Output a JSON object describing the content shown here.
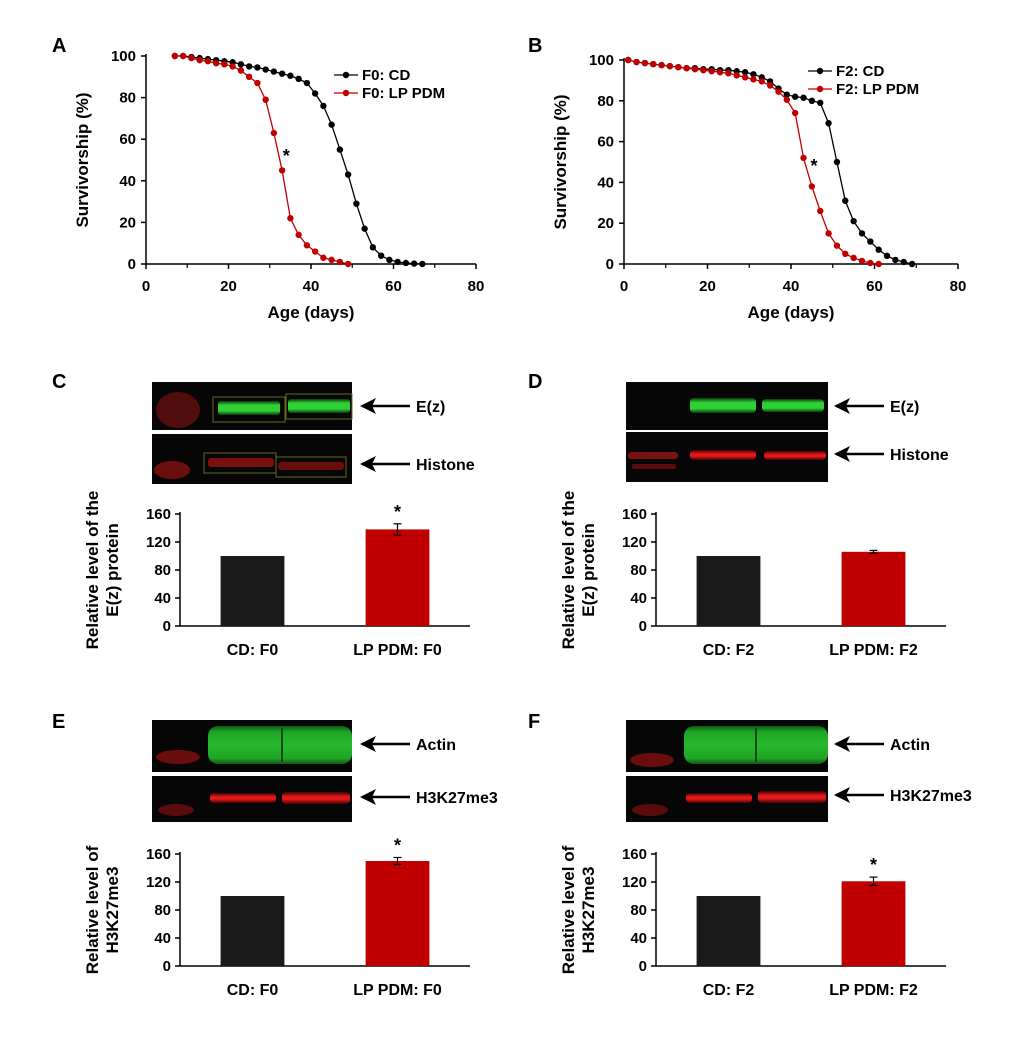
{
  "figure": {
    "panels": {
      "A": "A",
      "B": "B",
      "C": "C",
      "D": "D",
      "E": "E",
      "F": "F"
    },
    "blots": {
      "C": {
        "top_label": "E(z)",
        "bottom_label": "Histone"
      },
      "D": {
        "top_label": "E(z)",
        "bottom_label": "Histone"
      },
      "E": {
        "top_label": "Actin",
        "bottom_label": "H3K27me3"
      },
      "F": {
        "top_label": "Actin",
        "bottom_label": "H3K27me3"
      }
    },
    "colors": {
      "control": "#000000",
      "treatment": "#c00000",
      "blot_green": "#25c82a",
      "blot_red": "#d01010",
      "blot_bg": "#050505"
    }
  },
  "chart_data": [
    {
      "id": "A",
      "type": "line",
      "xlabel": "Age (days)",
      "ylabel": "Survivorship (%)",
      "xlim": [
        0,
        80
      ],
      "ylim": [
        0,
        100
      ],
      "xticks": [
        0,
        20,
        40,
        60,
        80
      ],
      "yticks": [
        0,
        20,
        40,
        60,
        80,
        100
      ],
      "legend_position": "top-right",
      "annotation": "*",
      "annotation_at": [
        34,
        52
      ],
      "series": [
        {
          "name": "F0: CD",
          "color": "#000000",
          "x": [
            7,
            9,
            11,
            13,
            15,
            17,
            19,
            21,
            23,
            25,
            27,
            29,
            31,
            33,
            35,
            37,
            39,
            41,
            43,
            45,
            47,
            49,
            51,
            53,
            55,
            57,
            59,
            61,
            63,
            65,
            67
          ],
          "y": [
            100,
            100,
            99.5,
            99,
            98.5,
            98,
            97.5,
            97,
            96,
            95,
            94.5,
            93.5,
            92.5,
            91.5,
            90.5,
            89,
            87,
            82,
            76,
            67,
            55,
            43,
            29,
            17,
            8,
            4,
            2,
            1,
            0.5,
            0.2,
            0
          ]
        },
        {
          "name": "F0: LP PDM",
          "color": "#c00000",
          "x": [
            7,
            9,
            11,
            13,
            15,
            17,
            19,
            21,
            23,
            25,
            27,
            29,
            31,
            33,
            35,
            37,
            39,
            41,
            43,
            45,
            47,
            49
          ],
          "y": [
            100,
            100,
            99,
            98,
            97.5,
            96.5,
            96,
            95,
            93,
            90,
            87,
            79,
            63,
            45,
            22,
            14,
            9,
            6,
            3,
            2,
            1,
            0
          ]
        }
      ]
    },
    {
      "id": "B",
      "type": "line",
      "xlabel": "Age (days)",
      "ylabel": "Survivorship (%)",
      "xlim": [
        0,
        80
      ],
      "ylim": [
        0,
        100
      ],
      "xticks": [
        0,
        20,
        40,
        60,
        80
      ],
      "yticks": [
        0,
        20,
        40,
        60,
        80,
        100
      ],
      "legend_position": "top-right",
      "annotation": "*",
      "annotation_at": [
        45.5,
        48
      ],
      "series": [
        {
          "name": "F2: CD",
          "color": "#000000",
          "x": [
            1,
            3,
            5,
            7,
            9,
            11,
            13,
            15,
            17,
            19,
            21,
            23,
            25,
            27,
            29,
            31,
            33,
            35,
            37,
            39,
            41,
            43,
            45,
            47,
            49,
            51,
            53,
            55,
            57,
            59,
            61,
            63,
            65,
            67,
            69
          ],
          "y": [
            100,
            99,
            98.5,
            98,
            97.5,
            97,
            96.5,
            96,
            96,
            95.5,
            95.5,
            95,
            95,
            94.5,
            94,
            93,
            91.5,
            89.5,
            86,
            83,
            82,
            81.5,
            80,
            79,
            69,
            50,
            31,
            21,
            15,
            11,
            7,
            4,
            2,
            1,
            0
          ]
        },
        {
          "name": "F2: LP PDM",
          "color": "#c00000",
          "x": [
            1,
            3,
            5,
            7,
            9,
            11,
            13,
            15,
            17,
            19,
            21,
            23,
            25,
            27,
            29,
            31,
            33,
            35,
            37,
            39,
            41,
            43,
            45,
            47,
            49,
            51,
            53,
            55,
            57,
            59,
            61
          ],
          "y": [
            100,
            99,
            98.5,
            98,
            97.5,
            97,
            96.5,
            96,
            95.5,
            95,
            94.5,
            94,
            93.5,
            92.5,
            91.5,
            90.5,
            89.5,
            87.5,
            84.5,
            80.5,
            74,
            52,
            38,
            26,
            15,
            9,
            5,
            3,
            1.5,
            0.5,
            0
          ]
        }
      ]
    },
    {
      "id": "C",
      "type": "bar",
      "ylabel": "Relative level of the E(z) protein",
      "ylabel_lines": [
        "Relative level of the",
        "E(z) protein"
      ],
      "categories": [
        "CD: F0",
        "LP PDM: F0"
      ],
      "values": [
        100,
        138
      ],
      "errors": [
        0,
        8
      ],
      "colors": [
        "#1a1a1a",
        "#c00000"
      ],
      "ylim": [
        0,
        160
      ],
      "yticks": [
        0,
        40,
        80,
        120,
        160
      ],
      "significance": [
        "",
        "*"
      ]
    },
    {
      "id": "D",
      "type": "bar",
      "ylabel": "Relative level of the E(z) protein",
      "ylabel_lines": [
        "Relative level of the",
        "E(z) protein"
      ],
      "categories": [
        "CD: F2",
        "LP PDM: F2"
      ],
      "values": [
        100,
        106
      ],
      "errors": [
        0,
        2
      ],
      "colors": [
        "#1a1a1a",
        "#c00000"
      ],
      "ylim": [
        0,
        160
      ],
      "yticks": [
        0,
        40,
        80,
        120,
        160
      ],
      "significance": [
        "",
        ""
      ]
    },
    {
      "id": "E",
      "type": "bar",
      "ylabel": "Relative level of H3K27me3",
      "ylabel_lines": [
        "Relative level of",
        "H3K27me3"
      ],
      "categories": [
        "CD: F0",
        "LP PDM: F0"
      ],
      "values": [
        100,
        150
      ],
      "errors": [
        0,
        5
      ],
      "colors": [
        "#1a1a1a",
        "#c00000"
      ],
      "ylim": [
        0,
        160
      ],
      "yticks": [
        0,
        40,
        80,
        120,
        160
      ],
      "significance": [
        "",
        "*"
      ]
    },
    {
      "id": "F",
      "type": "bar",
      "ylabel": "Relative level of H3K27me3",
      "ylabel_lines": [
        "Relative level of",
        "H3K27me3"
      ],
      "categories": [
        "CD: F2",
        "LP PDM: F2"
      ],
      "values": [
        100,
        121
      ],
      "errors": [
        0,
        6
      ],
      "colors": [
        "#1a1a1a",
        "#c00000"
      ],
      "ylim": [
        0,
        160
      ],
      "yticks": [
        0,
        40,
        80,
        120,
        160
      ],
      "significance": [
        "",
        "*"
      ]
    }
  ]
}
